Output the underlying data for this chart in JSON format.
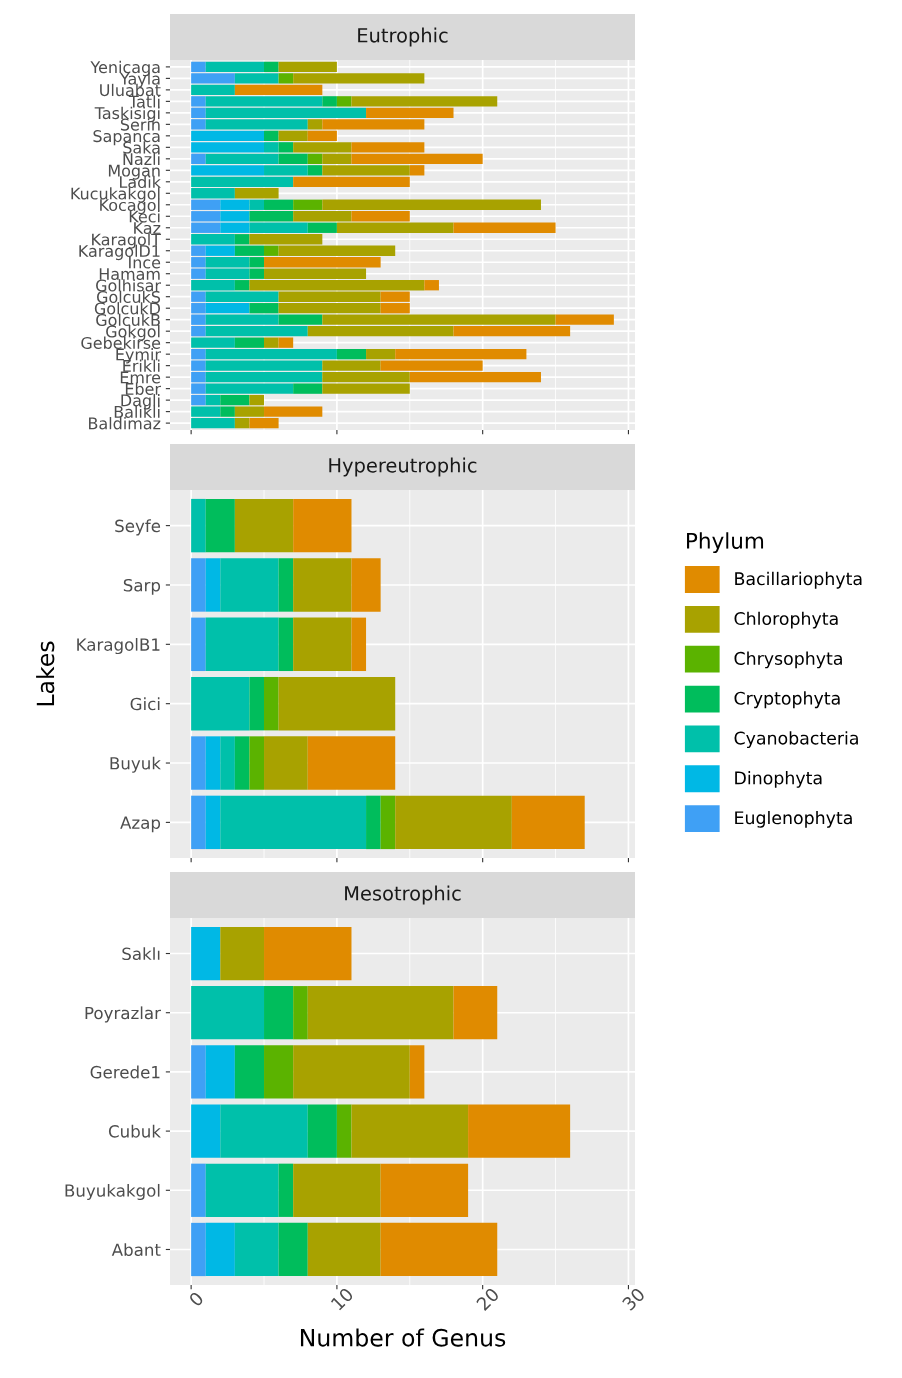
{
  "chart_data": [
    {
      "type": "bar",
      "orientation": "horizontal",
      "stacked": true,
      "title": "Eutrophic",
      "grid": true,
      "tick_labels": "y",
      "legend": "right",
      "legend_title": "Phylum",
      "categories": [
        "Yenicaga",
        "Yayla",
        "Uluabat",
        "Tatli",
        "Taskisigi",
        "Serin",
        "Sapanca",
        "Saka",
        "Nazli",
        "Mogan",
        "Ladik",
        "Kucukakgol",
        "Kocagol",
        "Keci",
        "Kaz",
        "KaragolT",
        "KaragolD1",
        "Ince",
        "Hamam",
        "Golhisar",
        "GolcukS",
        "GolcukD",
        "GolcukB",
        "Gokgol",
        "Gebekirse",
        "Eymir",
        "Erikli",
        "Emre",
        "Eber",
        "Dagli",
        "Balikli",
        "Baldimaz"
      ],
      "xlim": [
        -1.45,
        30.45
      ],
      "xticks": [
        0,
        10,
        20,
        30
      ],
      "series": [
        {
          "name": "Euglenophyta",
          "color": "#3fa0f5",
          "values": [
            1,
            3,
            0,
            1,
            1,
            1,
            0,
            0,
            1,
            0,
            0,
            0,
            2,
            2,
            2,
            0,
            1,
            1,
            1,
            0,
            1,
            1,
            1,
            1,
            0,
            1,
            1,
            1,
            1,
            1,
            0,
            0
          ]
        },
        {
          "name": "Dinophyta",
          "color": "#00b8e5",
          "values": [
            0,
            0,
            0,
            0,
            0,
            0,
            5,
            5,
            0,
            5,
            0,
            0,
            2,
            2,
            2,
            0,
            2,
            0,
            0,
            0,
            0,
            3,
            0,
            0,
            0,
            0,
            0,
            0,
            0,
            0,
            0,
            0
          ]
        },
        {
          "name": "Cyanobacteria",
          "color": "#00c0aa",
          "values": [
            4,
            3,
            3,
            8,
            11,
            7,
            0,
            1,
            5,
            3,
            7,
            3,
            1,
            0,
            4,
            3,
            0,
            3,
            3,
            3,
            5,
            0,
            5,
            7,
            3,
            9,
            8,
            8,
            6,
            1,
            2,
            3
          ]
        },
        {
          "name": "Cryptophyta",
          "color": "#00bd5c",
          "values": [
            1,
            0,
            0,
            1,
            0,
            0,
            1,
            1,
            2,
            1,
            0,
            0,
            2,
            3,
            2,
            1,
            2,
            1,
            1,
            1,
            0,
            2,
            3,
            0,
            2,
            2,
            0,
            0,
            2,
            2,
            1,
            0
          ]
        },
        {
          "name": "Chrysophyta",
          "color": "#5bb300",
          "values": [
            0,
            1,
            0,
            1,
            0,
            0,
            0,
            0,
            1,
            0,
            0,
            0,
            2,
            0,
            0,
            0,
            1,
            0,
            0,
            0,
            0,
            0,
            0,
            0,
            0,
            0,
            0,
            0,
            0,
            0,
            0,
            0
          ]
        },
        {
          "name": "Chlorophyta",
          "color": "#a8a200",
          "values": [
            4,
            9,
            0,
            10,
            0,
            1,
            2,
            4,
            2,
            6,
            0,
            3,
            15,
            4,
            8,
            5,
            8,
            0,
            7,
            12,
            7,
            7,
            16,
            10,
            1,
            2,
            4,
            6,
            6,
            1,
            2,
            1
          ]
        },
        {
          "name": "Bacillariophyta",
          "color": "#e08b00",
          "values": [
            0,
            0,
            6,
            0,
            6,
            7,
            2,
            5,
            9,
            1,
            8,
            0,
            0,
            4,
            7,
            0,
            0,
            8,
            0,
            1,
            2,
            2,
            4,
            8,
            1,
            9,
            7,
            9,
            0,
            0,
            4,
            2
          ]
        }
      ]
    },
    {
      "type": "bar",
      "orientation": "horizontal",
      "stacked": true,
      "title": "Hypereutrophic",
      "grid": true,
      "tick_labels": "y",
      "ylabel": "Lakes",
      "categories": [
        "Seyfe",
        "Sarp",
        "KaragolB1",
        "Gici",
        "Buyuk",
        "Azap"
      ],
      "xlim": [
        -1.45,
        30.45
      ],
      "xticks": [
        0,
        10,
        20,
        30
      ],
      "series": [
        {
          "color": "#3fa0f5",
          "values": [
            0,
            1,
            1,
            0,
            1,
            1
          ]
        },
        {
          "color": "#00b8e5",
          "values": [
            0,
            1,
            0,
            0,
            1,
            1
          ]
        },
        {
          "color": "#00c0aa",
          "values": [
            1,
            4,
            5,
            4,
            1,
            10
          ]
        },
        {
          "color": "#00bd5c",
          "values": [
            2,
            1,
            1,
            1,
            1,
            1
          ]
        },
        {
          "color": "#5bb300",
          "values": [
            0,
            0,
            0,
            1,
            1,
            1
          ]
        },
        {
          "color": "#a8a200",
          "values": [
            4,
            4,
            4,
            8,
            3,
            8
          ]
        },
        {
          "color": "#e08b00",
          "values": [
            4,
            2,
            1,
            0,
            6,
            5
          ]
        }
      ]
    },
    {
      "type": "bar",
      "orientation": "horizontal",
      "stacked": true,
      "title": "Mesotrophic",
      "grid": true,
      "xlabel": "Number of Genus",
      "categories": [
        "Saklı",
        "Poyrazlar",
        "Gerede1",
        "Cubuk",
        "Buyukakgol",
        "Abant"
      ],
      "xlim": [
        -1.45,
        30.45
      ],
      "xticks": [
        0,
        10,
        20,
        30
      ],
      "series": [
        {
          "color": "#3fa0f5",
          "values": [
            0,
            0,
            1,
            0,
            1,
            1
          ]
        },
        {
          "color": "#00b8e5",
          "values": [
            2,
            0,
            2,
            2,
            0,
            2
          ]
        },
        {
          "color": "#00c0aa",
          "values": [
            0,
            5,
            0,
            6,
            5,
            3
          ]
        },
        {
          "color": "#00bd5c",
          "values": [
            0,
            2,
            2,
            2,
            1,
            2
          ]
        },
        {
          "color": "#5bb300",
          "values": [
            0,
            1,
            2,
            1,
            0,
            0
          ]
        },
        {
          "color": "#a8a200",
          "values": [
            3,
            10,
            8,
            8,
            6,
            5
          ]
        },
        {
          "color": "#e08b00",
          "values": [
            6,
            3,
            1,
            7,
            6,
            8
          ]
        }
      ]
    }
  ]
}
